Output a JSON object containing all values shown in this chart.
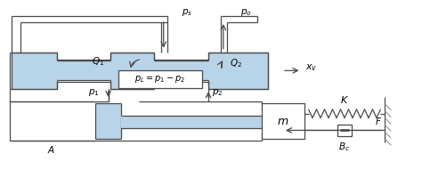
{
  "blue_fill": "#b8d4e8",
  "gray": "#4a4a4a",
  "figsize": [
    4.74,
    2.09
  ],
  "dpi": 100,
  "lw": 0.9
}
